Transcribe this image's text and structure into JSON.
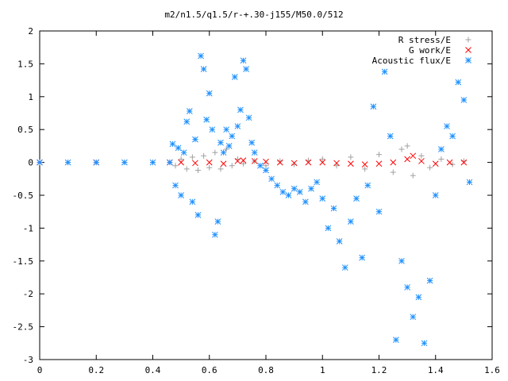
{
  "chart_data": {
    "type": "scatter",
    "title": "m2/n1.5/q1.5/r-+.30-j155/M50.0/512",
    "xlabel": "",
    "ylabel": "",
    "xlim": [
      0,
      1.6
    ],
    "ylim": [
      -3,
      2
    ],
    "x_ticks": [
      "0",
      "0.2",
      "0.4",
      "0.6",
      "0.8",
      "1",
      "1.2",
      "1.4",
      "1.6"
    ],
    "y_ticks": [
      "2",
      "1.5",
      "1",
      "0.5",
      "0",
      "-0.5",
      "-1",
      "-1.5",
      "-2",
      "-2.5",
      "-3"
    ],
    "grid": false,
    "legend_position": "top-right",
    "series": [
      {
        "name": "R stress/E",
        "marker": "plus",
        "color": "#a0a0a0",
        "points": [
          [
            0.0,
            0.0
          ],
          [
            0.1,
            0.0
          ],
          [
            0.2,
            0.0
          ],
          [
            0.3,
            0.0
          ],
          [
            0.4,
            0.0
          ],
          [
            0.46,
            0.0
          ],
          [
            0.48,
            -0.05
          ],
          [
            0.5,
            0.05
          ],
          [
            0.52,
            -0.1
          ],
          [
            0.54,
            0.08
          ],
          [
            0.56,
            -0.12
          ],
          [
            0.58,
            0.1
          ],
          [
            0.6,
            -0.08
          ],
          [
            0.62,
            0.15
          ],
          [
            0.64,
            -0.1
          ],
          [
            0.66,
            0.2
          ],
          [
            0.68,
            -0.05
          ],
          [
            0.7,
            0.05
          ],
          [
            0.72,
            -0.02
          ],
          [
            0.76,
            0.02
          ],
          [
            0.8,
            -0.05
          ],
          [
            0.85,
            0.02
          ],
          [
            0.9,
            -0.03
          ],
          [
            0.95,
            0.03
          ],
          [
            1.0,
            0.05
          ],
          [
            1.05,
            -0.05
          ],
          [
            1.1,
            0.08
          ],
          [
            1.15,
            -0.1
          ],
          [
            1.2,
            0.12
          ],
          [
            1.25,
            -0.15
          ],
          [
            1.28,
            0.2
          ],
          [
            1.3,
            0.25
          ],
          [
            1.32,
            -0.2
          ],
          [
            1.35,
            0.1
          ],
          [
            1.38,
            -0.08
          ],
          [
            1.42,
            0.05
          ],
          [
            1.46,
            -0.03
          ],
          [
            1.5,
            0.02
          ]
        ]
      },
      {
        "name": "G work/E",
        "marker": "cross",
        "color": "#ff0000",
        "points": [
          [
            0.0,
            0.0
          ],
          [
            0.2,
            0.0
          ],
          [
            0.46,
            0.0
          ],
          [
            0.5,
            0.0
          ],
          [
            0.55,
            -0.01
          ],
          [
            0.6,
            0.0
          ],
          [
            0.65,
            -0.02
          ],
          [
            0.7,
            0.02
          ],
          [
            0.72,
            0.03
          ],
          [
            0.76,
            0.02
          ],
          [
            0.8,
            0.01
          ],
          [
            0.85,
            0.0
          ],
          [
            0.9,
            -0.01
          ],
          [
            0.95,
            0.0
          ],
          [
            1.0,
            0.0
          ],
          [
            1.05,
            -0.01
          ],
          [
            1.1,
            -0.02
          ],
          [
            1.15,
            -0.03
          ],
          [
            1.2,
            -0.02
          ],
          [
            1.25,
            0.0
          ],
          [
            1.3,
            0.05
          ],
          [
            1.32,
            0.1
          ],
          [
            1.35,
            0.02
          ],
          [
            1.4,
            -0.02
          ],
          [
            1.45,
            0.0
          ],
          [
            1.5,
            0.0
          ]
        ]
      },
      {
        "name": "Acoustic flux/E",
        "marker": "star",
        "color": "#1e90ff",
        "points": [
          [
            0.0,
            0.0
          ],
          [
            0.1,
            0.0
          ],
          [
            0.2,
            0.0
          ],
          [
            0.3,
            0.0
          ],
          [
            0.4,
            0.0
          ],
          [
            0.46,
            0.0
          ],
          [
            0.47,
            0.28
          ],
          [
            0.48,
            -0.35
          ],
          [
            0.49,
            0.22
          ],
          [
            0.5,
            -0.5
          ],
          [
            0.51,
            0.15
          ],
          [
            0.52,
            0.62
          ],
          [
            0.53,
            0.78
          ],
          [
            0.54,
            -0.6
          ],
          [
            0.55,
            0.35
          ],
          [
            0.56,
            -0.8
          ],
          [
            0.57,
            1.62
          ],
          [
            0.58,
            1.42
          ],
          [
            0.59,
            0.65
          ],
          [
            0.6,
            1.05
          ],
          [
            0.61,
            0.5
          ],
          [
            0.62,
            -1.1
          ],
          [
            0.63,
            -0.9
          ],
          [
            0.64,
            0.3
          ],
          [
            0.65,
            0.15
          ],
          [
            0.66,
            0.5
          ],
          [
            0.67,
            0.25
          ],
          [
            0.68,
            0.4
          ],
          [
            0.69,
            1.3
          ],
          [
            0.7,
            0.55
          ],
          [
            0.71,
            0.8
          ],
          [
            0.72,
            1.55
          ],
          [
            0.73,
            1.42
          ],
          [
            0.74,
            0.68
          ],
          [
            0.75,
            0.3
          ],
          [
            0.76,
            0.15
          ],
          [
            0.78,
            -0.05
          ],
          [
            0.8,
            -0.12
          ],
          [
            0.82,
            -0.25
          ],
          [
            0.84,
            -0.35
          ],
          [
            0.86,
            -0.45
          ],
          [
            0.88,
            -0.5
          ],
          [
            0.9,
            -0.4
          ],
          [
            0.92,
            -0.45
          ],
          [
            0.94,
            -0.6
          ],
          [
            0.96,
            -0.4
          ],
          [
            0.98,
            -0.3
          ],
          [
            1.0,
            -0.55
          ],
          [
            1.02,
            -1.0
          ],
          [
            1.04,
            -0.7
          ],
          [
            1.06,
            -1.2
          ],
          [
            1.08,
            -1.6
          ],
          [
            1.1,
            -0.9
          ],
          [
            1.12,
            -0.55
          ],
          [
            1.14,
            -1.45
          ],
          [
            1.16,
            -0.35
          ],
          [
            1.18,
            0.85
          ],
          [
            1.2,
            -0.75
          ],
          [
            1.22,
            1.38
          ],
          [
            1.24,
            0.4
          ],
          [
            1.26,
            -2.7
          ],
          [
            1.28,
            -1.5
          ],
          [
            1.3,
            -1.9
          ],
          [
            1.32,
            -2.35
          ],
          [
            1.34,
            -2.05
          ],
          [
            1.36,
            -2.75
          ],
          [
            1.38,
            -1.8
          ],
          [
            1.4,
            -0.5
          ],
          [
            1.42,
            0.2
          ],
          [
            1.44,
            0.55
          ],
          [
            1.46,
            0.4
          ],
          [
            1.48,
            1.22
          ],
          [
            1.5,
            0.95
          ],
          [
            1.52,
            -0.3
          ]
        ]
      }
    ]
  }
}
